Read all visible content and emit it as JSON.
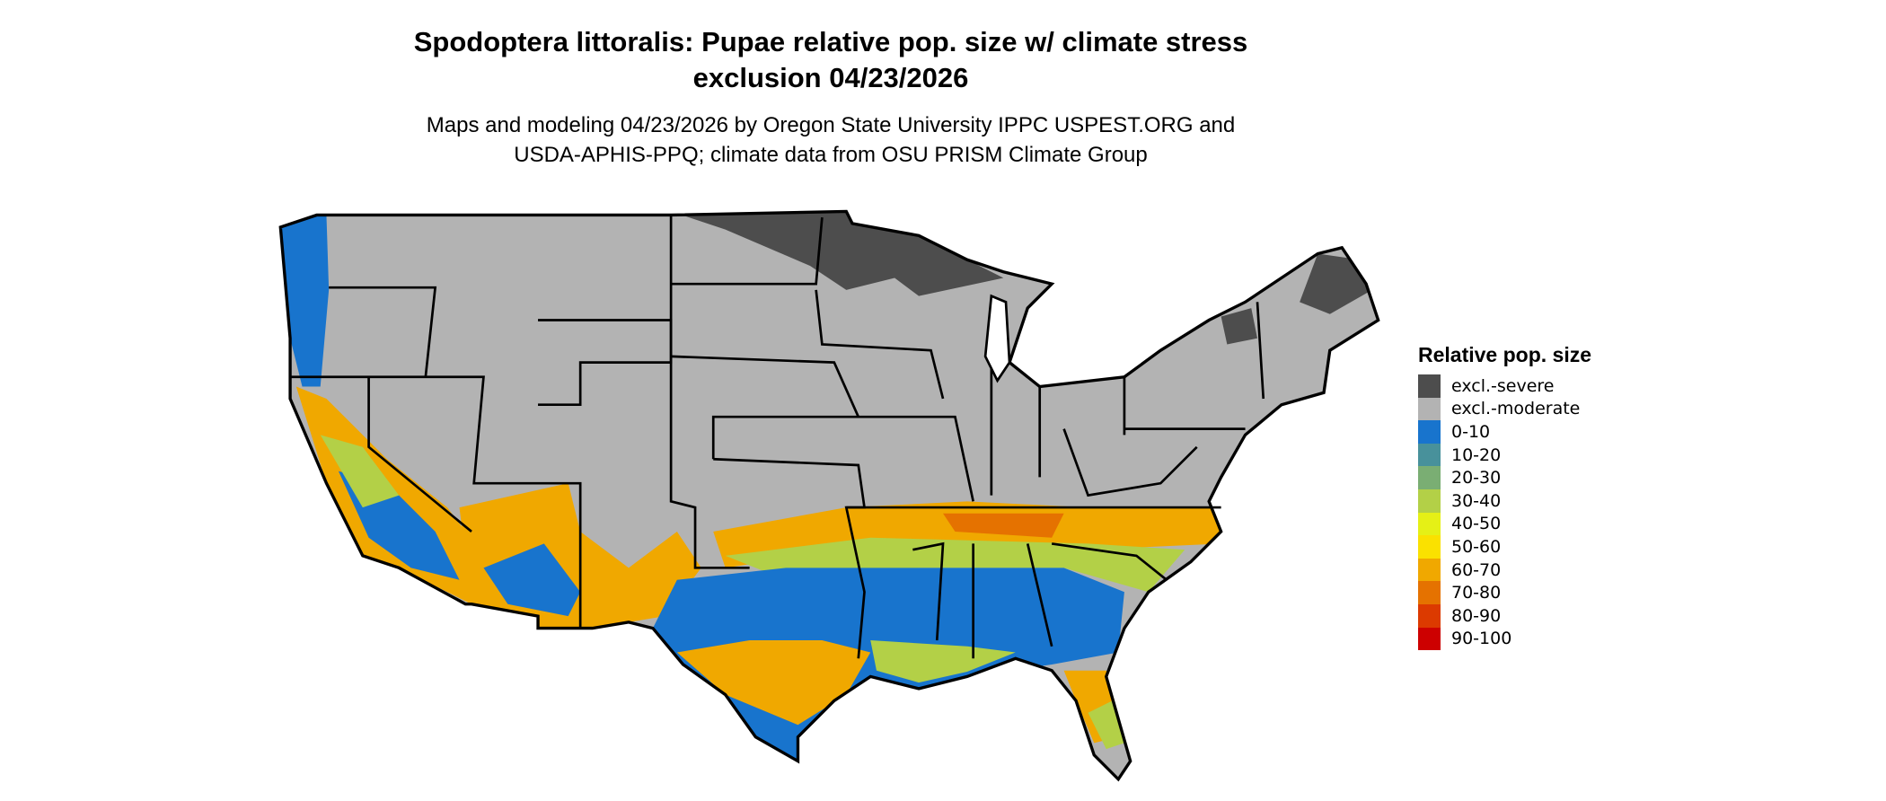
{
  "title_line1": "Spodoptera littoralis: Pupae relative pop. size w/ climate stress",
  "title_line2": "exclusion 04/23/2026",
  "subtitle_line1": "Maps and modeling 04/23/2026 by Oregon State University IPPC USPEST.ORG and",
  "subtitle_line2": "USDA-APHIS-PPQ; climate data from OSU PRISM Climate Group",
  "legend": {
    "title": "Relative pop. size",
    "items": [
      {
        "label": "excl.-severe",
        "color": "#4d4d4d"
      },
      {
        "label": "excl.-moderate",
        "color": "#b3b3b3"
      },
      {
        "label": "0-10",
        "color": "#1874cd"
      },
      {
        "label": "10-20",
        "color": "#48919b"
      },
      {
        "label": "20-30",
        "color": "#7aae73"
      },
      {
        "label": "30-40",
        "color": "#b3d047"
      },
      {
        "label": "40-50",
        "color": "#e5f016"
      },
      {
        "label": "50-60",
        "color": "#fae100"
      },
      {
        "label": "60-70",
        "color": "#f0a800"
      },
      {
        "label": "70-80",
        "color": "#e57200"
      },
      {
        "label": "80-90",
        "color": "#dc3a00"
      },
      {
        "label": "90-100",
        "color": "#cd0000"
      }
    ]
  },
  "map": {
    "region": "Contiguous United States",
    "boundaries": "state lines"
  }
}
